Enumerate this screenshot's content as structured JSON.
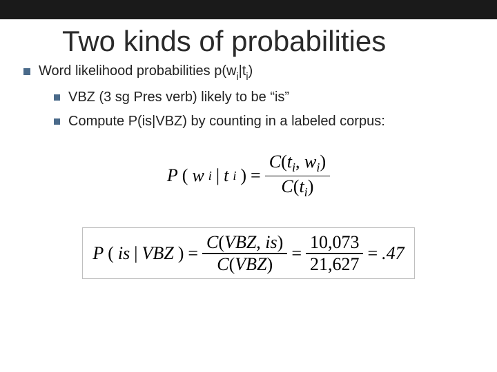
{
  "colors": {
    "topbar": "#1a1a1a",
    "bullet": "#4a6a8a",
    "text": "#222222",
    "title": "#2a2a2a",
    "formula_border": "#bfbfbf",
    "background": "#ffffff"
  },
  "typography": {
    "title_fontsize": 42,
    "body_fontsize": 20,
    "formula_fontsize": 26,
    "body_family": "Verdana",
    "formula_family": "Times New Roman"
  },
  "title": "Two kinds of probabilities",
  "bullets": {
    "l1": {
      "prefix": "Word likelihood probabilities p(w",
      "sub1": "i",
      "mid": "|t",
      "sub2": "i",
      "suffix": ")"
    },
    "l2a": "VBZ (3 sg Pres verb) likely to be “is”",
    "l2b": "Compute P(is|VBZ) by counting in a labeled corpus:"
  },
  "formula1": {
    "lhs_P": "P",
    "lhs_open": "(",
    "lhs_w": "w",
    "lhs_wi": "i",
    "lhs_bar": "|",
    "lhs_t": "t",
    "lhs_ti": "i",
    "lhs_close": ")",
    "eq": "=",
    "num_C": "C",
    "num_open": "(",
    "num_t": "t",
    "num_ti": "i",
    "num_comma": ",",
    "num_w": "w",
    "num_wi": "i",
    "num_close": ")",
    "den_C": "C",
    "den_open": "(",
    "den_t": "t",
    "den_ti": "i",
    "den_close": ")"
  },
  "formula2": {
    "lhs": "P",
    "lhs_open": "(",
    "lhs_arg": "is",
    "lhs_bar": "|",
    "lhs_arg2": "VBZ",
    "lhs_close": ")",
    "eq1": "=",
    "num1_C": "C",
    "num1_open": "(",
    "num1_a": "VBZ",
    "num1_comma": ",",
    "num1_b": "is",
    "num1_close": ")",
    "den1_C": "C",
    "den1_open": "(",
    "den1_a": "VBZ",
    "den1_close": ")",
    "eq2": "=",
    "num2": "10,073",
    "den2": "21,627",
    "eq3": "=",
    "result": ".47"
  }
}
